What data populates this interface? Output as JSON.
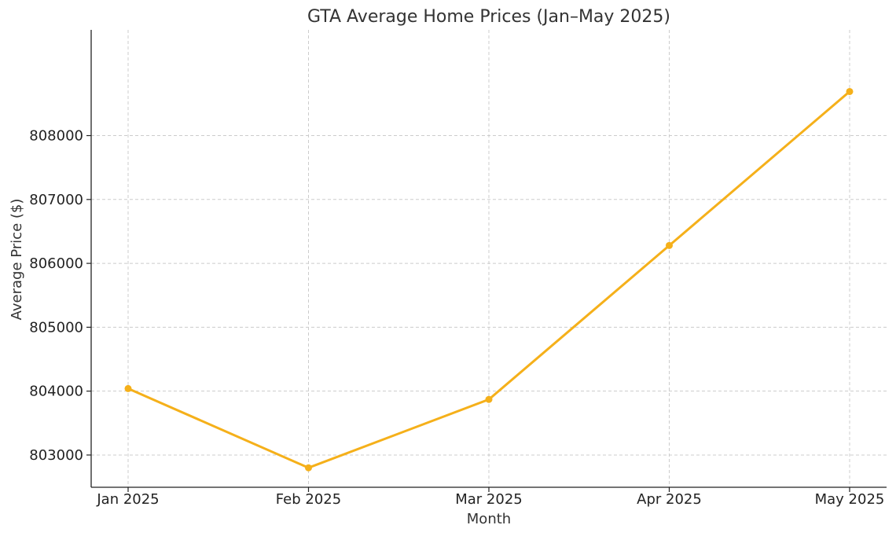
{
  "chart_data": {
    "type": "line",
    "title": "GTA Average Home Prices (Jan–May 2025)",
    "xlabel": "Month",
    "ylabel": "Average Price ($)",
    "categories": [
      "Jan 2025",
      "Feb 2025",
      "Mar 2025",
      "Apr 2025",
      "May 2025"
    ],
    "series": [
      {
        "values": [
          804040,
          802800,
          803870,
          806280,
          808690
        ],
        "color": "#f5b01a"
      }
    ],
    "yticks": [
      803000,
      804000,
      805000,
      806000,
      807000,
      808000
    ],
    "ytick_labels": [
      "803000",
      "804000",
      "805000",
      "806000",
      "807000",
      "808000"
    ],
    "ylim": [
      802495,
      809655
    ],
    "grid": true,
    "legend": "none"
  }
}
